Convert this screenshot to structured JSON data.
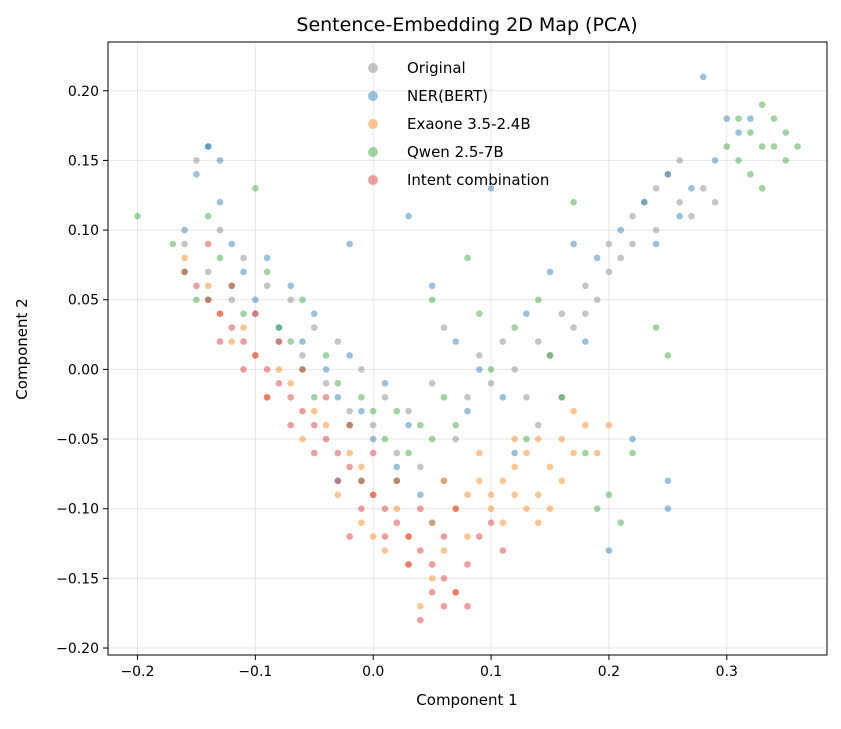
{
  "chart_data": {
    "type": "scatter",
    "title": "Sentence-Embedding 2D Map (PCA)",
    "xlabel": "Component 1",
    "ylabel": "Component 2",
    "xlim": [
      -0.225,
      0.385
    ],
    "ylim": [
      -0.205,
      0.235
    ],
    "grid": true,
    "legend_position": "top-center",
    "x_ticks": [
      -0.2,
      -0.1,
      0.0,
      0.1,
      0.2,
      0.3
    ],
    "x_tick_labels": [
      "−0.2",
      "−0.1",
      "0.0",
      "0.1",
      "0.2",
      "0.3"
    ],
    "y_ticks": [
      -0.2,
      -0.15,
      -0.1,
      -0.05,
      0.0,
      0.05,
      0.1,
      0.15,
      0.2
    ],
    "y_tick_labels": [
      "−0.20",
      "−0.15",
      "−0.10",
      "−0.05",
      "0.00",
      "0.05",
      "0.10",
      "0.15",
      "0.20"
    ],
    "series": [
      {
        "name": "Original",
        "color": "#7f7f7f",
        "points": [
          [
            -0.16,
            0.09
          ],
          [
            -0.14,
            0.07
          ],
          [
            -0.12,
            0.05
          ],
          [
            -0.1,
            0.04
          ],
          [
            -0.08,
            0.02
          ],
          [
            -0.06,
            0.01
          ],
          [
            -0.04,
            -0.01
          ],
          [
            -0.02,
            -0.03
          ],
          [
            0.0,
            -0.04
          ],
          [
            0.02,
            -0.06
          ],
          [
            0.04,
            -0.07
          ],
          [
            0.06,
            -0.08
          ],
          [
            -0.13,
            0.1
          ],
          [
            -0.09,
            0.06
          ],
          [
            -0.05,
            0.03
          ],
          [
            -0.01,
            0.0
          ],
          [
            0.03,
            -0.03
          ],
          [
            0.07,
            -0.05
          ],
          [
            0.1,
            -0.01
          ],
          [
            0.12,
            0.0
          ],
          [
            0.14,
            0.02
          ],
          [
            0.16,
            0.04
          ],
          [
            0.18,
            0.06
          ],
          [
            0.2,
            0.07
          ],
          [
            0.22,
            0.09
          ],
          [
            0.24,
            0.1
          ],
          [
            0.26,
            0.12
          ],
          [
            0.28,
            0.13
          ],
          [
            0.25,
            0.14
          ],
          [
            0.23,
            0.12
          ],
          [
            0.21,
            0.08
          ],
          [
            0.19,
            0.05
          ],
          [
            0.17,
            0.03
          ],
          [
            0.15,
            0.01
          ],
          [
            0.13,
            -0.02
          ],
          [
            0.11,
            0.02
          ],
          [
            0.09,
            0.01
          ],
          [
            0.27,
            0.11
          ],
          [
            0.29,
            0.12
          ],
          [
            0.24,
            0.13
          ],
          [
            0.22,
            0.11
          ],
          [
            0.26,
            0.15
          ],
          [
            0.2,
            0.09
          ],
          [
            0.18,
            0.04
          ],
          [
            0.16,
            -0.02
          ],
          [
            0.14,
            -0.04
          ],
          [
            0.08,
            -0.02
          ],
          [
            0.05,
            -0.01
          ],
          [
            -0.15,
            0.15
          ],
          [
            -0.11,
            0.08
          ],
          [
            -0.07,
            0.05
          ],
          [
            -0.03,
            0.02
          ],
          [
            0.01,
            -0.02
          ],
          [
            0.06,
            0.03
          ]
        ]
      },
      {
        "name": "NER(BERT)",
        "color": "#1f77b4",
        "points": [
          [
            -0.16,
            0.1
          ],
          [
            -0.15,
            0.14
          ],
          [
            -0.14,
            0.16
          ],
          [
            -0.13,
            0.12
          ],
          [
            -0.12,
            0.09
          ],
          [
            -0.11,
            0.07
          ],
          [
            -0.1,
            0.05
          ],
          [
            -0.09,
            0.08
          ],
          [
            -0.08,
            0.03
          ],
          [
            -0.07,
            0.06
          ],
          [
            -0.06,
            0.02
          ],
          [
            -0.05,
            0.04
          ],
          [
            -0.04,
            0.0
          ],
          [
            -0.03,
            -0.02
          ],
          [
            -0.02,
            0.01
          ],
          [
            -0.01,
            -0.03
          ],
          [
            0.0,
            -0.05
          ],
          [
            0.01,
            -0.01
          ],
          [
            0.02,
            -0.07
          ],
          [
            0.03,
            -0.04
          ],
          [
            0.04,
            -0.09
          ],
          [
            0.05,
            0.06
          ],
          [
            0.07,
            0.02
          ],
          [
            0.09,
            0.0
          ],
          [
            0.11,
            -0.02
          ],
          [
            0.13,
            0.04
          ],
          [
            0.15,
            0.07
          ],
          [
            0.17,
            0.09
          ],
          [
            0.19,
            0.08
          ],
          [
            0.21,
            0.1
          ],
          [
            0.23,
            0.12
          ],
          [
            0.25,
            0.14
          ],
          [
            0.27,
            0.13
          ],
          [
            0.29,
            0.15
          ],
          [
            0.31,
            0.17
          ],
          [
            0.32,
            0.18
          ],
          [
            0.26,
            0.11
          ],
          [
            0.24,
            0.09
          ],
          [
            0.22,
            -0.05
          ],
          [
            0.25,
            -0.08
          ],
          [
            0.2,
            -0.13
          ],
          [
            0.25,
            -0.1
          ],
          [
            0.28,
            0.21
          ],
          [
            0.03,
            0.11
          ],
          [
            -0.02,
            0.09
          ],
          [
            0.1,
            0.13
          ],
          [
            0.12,
            -0.06
          ],
          [
            0.18,
            0.02
          ],
          [
            -0.14,
            0.16
          ],
          [
            -0.13,
            0.15
          ],
          [
            0.3,
            0.18
          ],
          [
            0.05,
            -0.11
          ],
          [
            -0.03,
            -0.08
          ],
          [
            0.08,
            -0.03
          ]
        ]
      },
      {
        "name": "Exaone 3.5-2.4B",
        "color": "#ff7f0e",
        "points": [
          [
            -0.16,
            0.08
          ],
          [
            -0.14,
            0.06
          ],
          [
            -0.13,
            0.04
          ],
          [
            -0.11,
            0.03
          ],
          [
            -0.1,
            0.01
          ],
          [
            -0.08,
            0.0
          ],
          [
            -0.07,
            -0.01
          ],
          [
            -0.05,
            -0.03
          ],
          [
            -0.04,
            -0.04
          ],
          [
            -0.02,
            -0.06
          ],
          [
            -0.01,
            -0.07
          ],
          [
            0.0,
            -0.09
          ],
          [
            0.02,
            -0.1
          ],
          [
            0.03,
            -0.12
          ],
          [
            0.05,
            -0.11
          ],
          [
            0.06,
            -0.13
          ],
          [
            0.07,
            -0.1
          ],
          [
            0.08,
            -0.09
          ],
          [
            0.09,
            -0.08
          ],
          [
            0.1,
            -0.09
          ],
          [
            0.11,
            -0.08
          ],
          [
            0.12,
            -0.07
          ],
          [
            0.13,
            -0.06
          ],
          [
            0.14,
            -0.05
          ],
          [
            0.15,
            -0.07
          ],
          [
            0.16,
            -0.05
          ],
          [
            0.17,
            -0.06
          ],
          [
            0.18,
            -0.04
          ],
          [
            0.19,
            -0.06
          ],
          [
            0.1,
            -0.1
          ],
          [
            0.11,
            -0.11
          ],
          [
            0.12,
            -0.09
          ],
          [
            0.13,
            -0.1
          ],
          [
            0.14,
            -0.09
          ],
          [
            0.05,
            -0.15
          ],
          [
            0.03,
            -0.14
          ],
          [
            0.01,
            -0.13
          ],
          [
            -0.01,
            -0.11
          ],
          [
            -0.03,
            -0.09
          ],
          [
            0.07,
            -0.16
          ],
          [
            0.04,
            -0.17
          ],
          [
            0.2,
            -0.04
          ],
          [
            0.16,
            -0.08
          ],
          [
            0.15,
            -0.1
          ],
          [
            0.09,
            -0.06
          ],
          [
            -0.12,
            0.02
          ],
          [
            -0.06,
            -0.05
          ],
          [
            0.0,
            -0.12
          ],
          [
            0.08,
            -0.12
          ],
          [
            0.12,
            -0.05
          ],
          [
            0.17,
            -0.03
          ],
          [
            0.14,
            -0.11
          ],
          [
            -0.09,
            -0.02
          ],
          [
            0.06,
            -0.08
          ]
        ]
      },
      {
        "name": "Qwen 2.5-7B",
        "color": "#2ca02c",
        "points": [
          [
            -0.2,
            0.11
          ],
          [
            -0.17,
            0.09
          ],
          [
            -0.16,
            0.07
          ],
          [
            -0.15,
            0.05
          ],
          [
            -0.14,
            0.11
          ],
          [
            -0.13,
            0.08
          ],
          [
            -0.12,
            0.06
          ],
          [
            -0.11,
            0.04
          ],
          [
            -0.1,
            0.13
          ],
          [
            -0.09,
            0.07
          ],
          [
            -0.08,
            0.03
          ],
          [
            -0.07,
            0.02
          ],
          [
            -0.06,
            0.0
          ],
          [
            -0.05,
            -0.02
          ],
          [
            -0.04,
            0.01
          ],
          [
            -0.03,
            -0.01
          ],
          [
            -0.02,
            -0.04
          ],
          [
            -0.01,
            -0.02
          ],
          [
            0.0,
            -0.03
          ],
          [
            0.01,
            -0.05
          ],
          [
            0.02,
            -0.03
          ],
          [
            0.03,
            -0.06
          ],
          [
            0.04,
            -0.04
          ],
          [
            0.05,
            -0.05
          ],
          [
            0.06,
            -0.02
          ],
          [
            0.07,
            -0.04
          ],
          [
            0.05,
            0.05
          ],
          [
            0.08,
            0.08
          ],
          [
            0.1,
            0.0
          ],
          [
            0.12,
            0.03
          ],
          [
            0.14,
            0.05
          ],
          [
            0.16,
            -0.02
          ],
          [
            0.18,
            -0.06
          ],
          [
            0.2,
            -0.09
          ],
          [
            0.22,
            -0.06
          ],
          [
            0.24,
            0.03
          ],
          [
            0.19,
            -0.1
          ],
          [
            0.21,
            -0.11
          ],
          [
            0.17,
            0.12
          ],
          [
            0.3,
            0.16
          ],
          [
            0.31,
            0.15
          ],
          [
            0.32,
            0.17
          ],
          [
            0.33,
            0.16
          ],
          [
            0.34,
            0.18
          ],
          [
            0.35,
            0.17
          ],
          [
            0.36,
            0.16
          ],
          [
            0.32,
            0.14
          ],
          [
            0.33,
            0.19
          ],
          [
            0.35,
            0.15
          ],
          [
            0.34,
            0.16
          ],
          [
            0.31,
            0.18
          ],
          [
            0.33,
            0.13
          ],
          [
            0.13,
            -0.05
          ],
          [
            0.09,
            0.04
          ],
          [
            -0.06,
            0.05
          ],
          [
            -0.01,
            -0.08
          ],
          [
            0.25,
            0.01
          ],
          [
            -0.14,
            0.05
          ],
          [
            0.02,
            -0.08
          ],
          [
            0.15,
            0.01
          ]
        ]
      },
      {
        "name": "Intent combination",
        "color": "#d62728",
        "points": [
          [
            -0.16,
            0.07
          ],
          [
            -0.15,
            0.06
          ],
          [
            -0.14,
            0.05
          ],
          [
            -0.13,
            0.04
          ],
          [
            -0.12,
            0.03
          ],
          [
            -0.11,
            0.02
          ],
          [
            -0.1,
            0.01
          ],
          [
            -0.09,
            0.0
          ],
          [
            -0.08,
            -0.01
          ],
          [
            -0.07,
            -0.02
          ],
          [
            -0.06,
            -0.03
          ],
          [
            -0.05,
            -0.04
          ],
          [
            -0.04,
            -0.05
          ],
          [
            -0.03,
            -0.06
          ],
          [
            -0.02,
            -0.07
          ],
          [
            -0.01,
            -0.08
          ],
          [
            0.0,
            -0.09
          ],
          [
            0.01,
            -0.1
          ],
          [
            0.02,
            -0.11
          ],
          [
            0.03,
            -0.12
          ],
          [
            0.04,
            -0.13
          ],
          [
            0.05,
            -0.14
          ],
          [
            0.06,
            -0.15
          ],
          [
            0.07,
            -0.16
          ],
          [
            0.08,
            -0.17
          ],
          [
            -0.13,
            0.02
          ],
          [
            -0.11,
            0.0
          ],
          [
            -0.09,
            -0.02
          ],
          [
            -0.07,
            -0.04
          ],
          [
            -0.05,
            -0.06
          ],
          [
            -0.03,
            -0.08
          ],
          [
            -0.01,
            -0.1
          ],
          [
            0.01,
            -0.12
          ],
          [
            0.03,
            -0.14
          ],
          [
            0.05,
            -0.16
          ],
          [
            -0.12,
            0.06
          ],
          [
            -0.1,
            0.04
          ],
          [
            -0.08,
            0.02
          ],
          [
            -0.06,
            0.0
          ],
          [
            -0.04,
            -0.02
          ],
          [
            -0.02,
            -0.04
          ],
          [
            0.0,
            -0.06
          ],
          [
            0.02,
            -0.08
          ],
          [
            0.04,
            -0.1
          ],
          [
            0.06,
            -0.12
          ],
          [
            0.08,
            -0.14
          ],
          [
            0.1,
            -0.11
          ],
          [
            0.09,
            -0.12
          ],
          [
            0.04,
            -0.18
          ],
          [
            0.06,
            -0.17
          ],
          [
            -0.14,
            0.09
          ],
          [
            0.11,
            -0.13
          ],
          [
            -0.02,
            -0.12
          ],
          [
            0.07,
            -0.1
          ]
        ]
      }
    ]
  }
}
